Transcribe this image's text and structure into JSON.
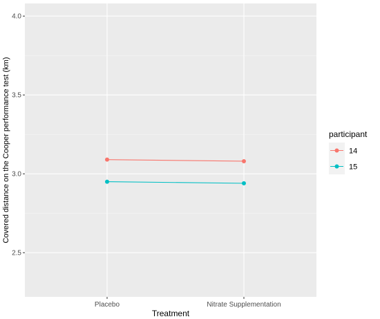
{
  "chart_data": {
    "type": "line",
    "title": "",
    "xlabel": "Treatment",
    "ylabel": "Covered distance on the Cooper performance test (km)",
    "categories": [
      "Placebo",
      "Nitrate Supplementation"
    ],
    "yticks": [
      "2.5",
      "3.0",
      "3.5",
      "4.0"
    ],
    "ylim": [
      2.22,
      4.08
    ],
    "grid": true,
    "panel_background": "#ebebeb",
    "legend": {
      "title": "participant",
      "position": "right"
    },
    "series": [
      {
        "name": "14",
        "color": "#f8766d",
        "values": [
          3.09,
          3.08
        ]
      },
      {
        "name": "15",
        "color": "#00bfc4",
        "values": [
          2.95,
          2.94
        ]
      }
    ]
  }
}
